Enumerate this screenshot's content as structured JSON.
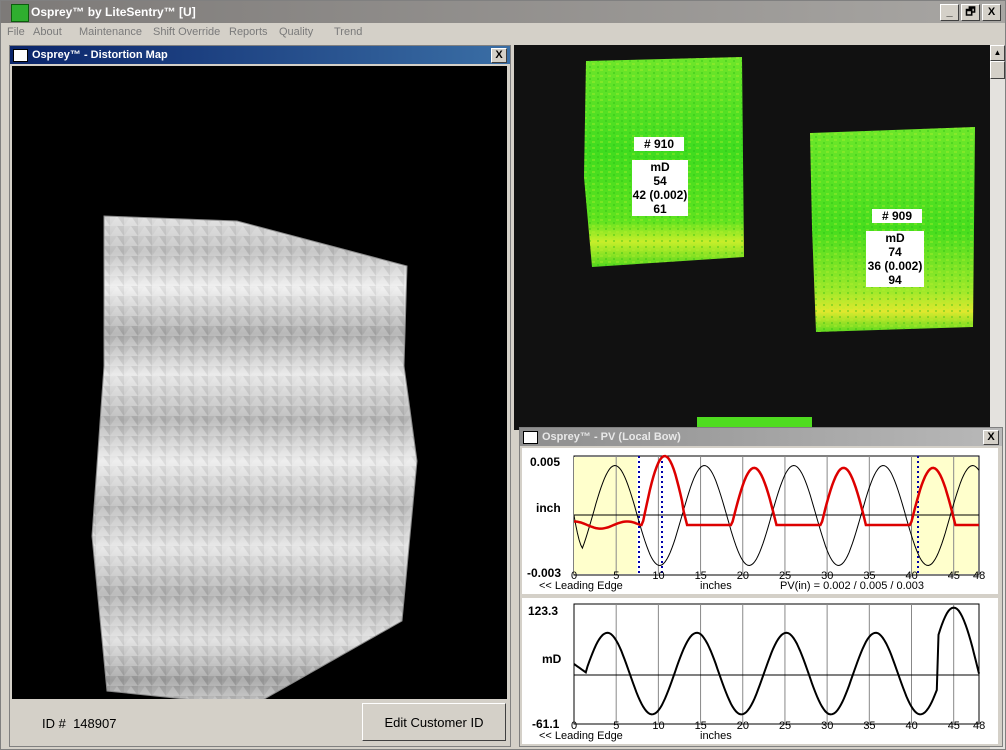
{
  "window": {
    "title": "Osprey™ by LiteSentry™ [U]",
    "controls": {
      "minimize": "_",
      "restore": "🗗",
      "close": "X"
    }
  },
  "menu": [
    "File",
    "About",
    "Maintenance",
    "Shift Override",
    "Reports",
    "Quality",
    "Trend"
  ],
  "distortion_map": {
    "title": "Osprey™ - Distortion Map",
    "close": "X",
    "id_label": "ID #",
    "id_value": "148907",
    "edit_button": "Edit Customer ID"
  },
  "plates": [
    {
      "number": "# 910",
      "metric": "mD",
      "lines": [
        "54",
        "42 (0.002)",
        "61"
      ]
    },
    {
      "number": "# 909",
      "metric": "mD",
      "lines": [
        "74",
        "36 (0.002)",
        "94"
      ]
    }
  ],
  "pv_window": {
    "title": "Osprey™ - PV (Local Bow)",
    "close": "X",
    "top_plot": {
      "y_max_label": "0.005",
      "y_mid_label": "inch",
      "y_min_label": "-0.003",
      "leading_edge": "<< Leading Edge",
      "x_unit": "inches",
      "pv_text": "PV(in) = 0.002 / 0.005 / 0.003"
    },
    "bottom_plot": {
      "y_max_label": "123.3",
      "y_mid_label": "mD",
      "y_min_label": "-61.1",
      "leading_edge": "<< Leading Edge",
      "x_unit": "inches"
    },
    "x_ticks": [
      "0",
      "5",
      "10",
      "15",
      "20",
      "25",
      "30",
      "35",
      "40",
      "45",
      "48"
    ]
  },
  "colors": {
    "red_curve": "#dd0000",
    "black_curve": "#000000",
    "edge_shade": "#ffffcc",
    "marker_line": "#00008b",
    "plate_green": "#44dd22"
  }
}
